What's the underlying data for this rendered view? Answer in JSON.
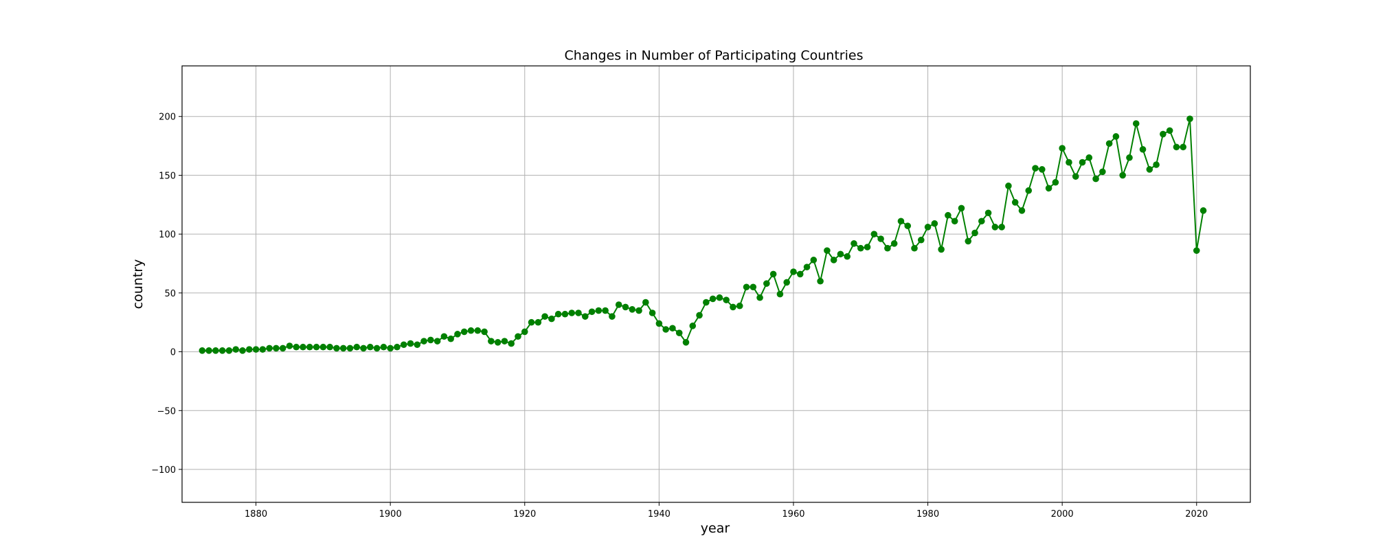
{
  "chart_data": {
    "type": "line",
    "title": "Changes in Number of Participating Countries",
    "xlabel": "year",
    "ylabel": "country",
    "xlim": [
      1869,
      2028
    ],
    "ylim": [
      -128,
      243
    ],
    "xticks": [
      1880,
      1900,
      1920,
      1940,
      1960,
      1980,
      2000,
      2020
    ],
    "yticks": [
      -100,
      -50,
      0,
      50,
      100,
      150,
      200
    ],
    "ytick_labels": [
      "−100",
      "−50",
      "0",
      "50",
      "100",
      "150",
      "200"
    ],
    "grid": true,
    "legend": "none",
    "color": "#008000",
    "series": [
      {
        "x": [
          1872,
          1873,
          1874,
          1875,
          1876,
          1877,
          1878,
          1879,
          1880,
          1881,
          1882,
          1883,
          1884,
          1885,
          1886,
          1887,
          1888,
          1889,
          1890,
          1891,
          1892,
          1893,
          1894,
          1895,
          1896,
          1897,
          1898,
          1899,
          1900,
          1901,
          1902,
          1903,
          1904,
          1905,
          1906,
          1907,
          1908,
          1909,
          1910,
          1911,
          1912,
          1913,
          1914,
          1915,
          1916,
          1917,
          1918,
          1919,
          1920,
          1921,
          1922,
          1923,
          1924,
          1925,
          1926,
          1927,
          1928,
          1929,
          1930,
          1931,
          1932,
          1933,
          1934,
          1935,
          1936,
          1937,
          1938,
          1939,
          1940,
          1941,
          1942,
          1943,
          1944,
          1945,
          1946,
          1947,
          1948,
          1949,
          1950,
          1951,
          1952,
          1953,
          1954,
          1955,
          1956,
          1957,
          1958,
          1959,
          1960,
          1961,
          1962,
          1963,
          1964,
          1965,
          1966,
          1967,
          1968,
          1969,
          1970,
          1971,
          1972,
          1973,
          1974,
          1975,
          1976,
          1977,
          1978,
          1979,
          1980,
          1981,
          1982,
          1983,
          1984,
          1985,
          1986,
          1987,
          1988,
          1989,
          1990,
          1991,
          1992,
          1993,
          1994,
          1995,
          1996,
          1997,
          1998,
          1999,
          2000,
          2001,
          2002,
          2003,
          2004,
          2005,
          2006,
          2007,
          2008,
          2009,
          2010,
          2011,
          2012,
          2013,
          2014,
          2015,
          2016,
          2017,
          2018,
          2019,
          2020,
          2021
        ],
        "values": [
          1,
          1,
          1,
          1,
          1,
          2,
          1,
          2,
          2,
          2,
          3,
          3,
          3,
          5,
          4,
          4,
          4,
          4,
          4,
          4,
          3,
          3,
          3,
          4,
          3,
          4,
          3,
          4,
          3,
          4,
          6,
          7,
          6,
          9,
          10,
          9,
          13,
          11,
          15,
          17,
          18,
          18,
          17,
          9,
          8,
          9,
          7,
          13,
          17,
          25,
          25,
          30,
          28,
          32,
          32,
          33,
          33,
          30,
          34,
          35,
          35,
          30,
          40,
          38,
          36,
          35,
          42,
          33,
          24,
          19,
          20,
          16,
          8,
          22,
          31,
          42,
          45,
          46,
          44,
          38,
          39,
          55,
          55,
          46,
          58,
          66,
          49,
          59,
          68,
          66,
          72,
          78,
          60,
          86,
          78,
          83,
          81,
          92,
          88,
          89,
          100,
          96,
          88,
          92,
          111,
          107,
          88,
          95,
          106,
          109,
          87,
          116,
          111,
          122,
          94,
          101,
          111,
          118,
          106,
          106,
          141,
          127,
          120,
          137,
          156,
          155,
          139,
          144,
          173,
          161,
          149,
          161,
          165,
          147,
          153,
          177,
          183,
          150,
          165,
          194,
          172,
          155,
          159,
          185,
          188,
          174,
          174,
          198,
          86,
          120
        ]
      }
    ]
  }
}
